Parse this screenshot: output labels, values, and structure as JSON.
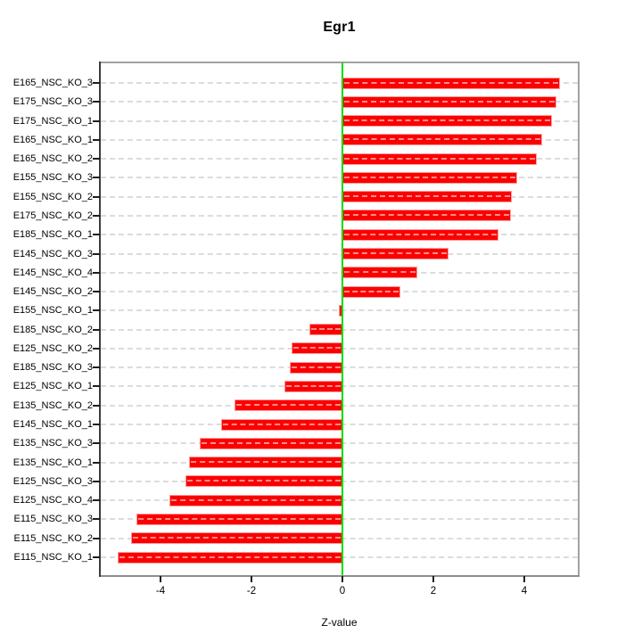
{
  "title": "Egr1",
  "chart_data": {
    "type": "bar",
    "orientation": "horizontal",
    "title": "Egr1",
    "xlabel": "Z-value",
    "ylabel": "",
    "grid": "dashed-horizontal",
    "legend": "none",
    "xlim": [
      -5.3,
      5.2
    ],
    "x_ticks": [
      -4,
      -2,
      0,
      2,
      4
    ],
    "bar_color": "#fb0000",
    "bar_edge_color": "#ff9a9a",
    "zero_line_color": "#00dd00",
    "categories": [
      "E165_NSC_KO_3",
      "E175_NSC_KO_3",
      "E175_NSC_KO_1",
      "E165_NSC_KO_1",
      "E165_NSC_KO_2",
      "E155_NSC_KO_3",
      "E155_NSC_KO_2",
      "E175_NSC_KO_2",
      "E185_NSC_KO_1",
      "E145_NSC_KO_3",
      "E145_NSC_KO_4",
      "E145_NSC_KO_2",
      "E155_NSC_KO_1",
      "E185_NSC_KO_2",
      "E125_NSC_KO_2",
      "E185_NSC_KO_3",
      "E125_NSC_KO_1",
      "E135_NSC_KO_2",
      "E145_NSC_KO_1",
      "E135_NSC_KO_3",
      "E135_NSC_KO_1",
      "E125_NSC_KO_3",
      "E125_NSC_KO_4",
      "E115_NSC_KO_3",
      "E115_NSC_KO_2",
      "E115_NSC_KO_1"
    ],
    "values": [
      4.78,
      4.7,
      4.6,
      4.4,
      4.27,
      3.84,
      3.73,
      3.71,
      3.43,
      2.33,
      1.64,
      1.27,
      -0.08,
      -0.73,
      -1.11,
      -1.15,
      -1.27,
      -2.37,
      -2.66,
      -3.13,
      -3.38,
      -3.46,
      -3.8,
      -4.52,
      -4.64,
      -4.95
    ]
  }
}
